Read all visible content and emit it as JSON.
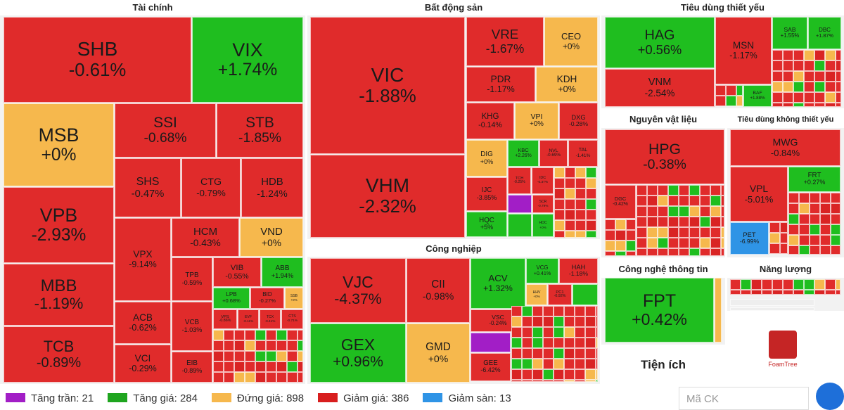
{
  "sectors": [
    {
      "title": "Tài chính",
      "tiles": [
        {
          "ticker": "SHB",
          "change": "-0.61%",
          "color": "#e02b2b"
        },
        {
          "ticker": "VIX",
          "change": "+1.74%",
          "color": "#1fbe1f"
        },
        {
          "ticker": "MSB",
          "change": "+0%",
          "color": "#f6b84d"
        },
        {
          "ticker": "SSI",
          "change": "-0.68%",
          "color": "#e02b2b"
        },
        {
          "ticker": "STB",
          "change": "-1.85%",
          "color": "#e02b2b"
        },
        {
          "ticker": "SHS",
          "change": "-0.47%",
          "color": "#e02b2b"
        },
        {
          "ticker": "CTG",
          "change": "-0.79%",
          "color": "#e02b2b"
        },
        {
          "ticker": "HDB",
          "change": "-1.24%",
          "color": "#e02b2b"
        },
        {
          "ticker": "VPB",
          "change": "-2.93%",
          "color": "#e02b2b"
        },
        {
          "ticker": "VPX",
          "change": "-9.14%",
          "color": "#e02b2b"
        },
        {
          "ticker": "HCM",
          "change": "-0.43%",
          "color": "#e02b2b"
        },
        {
          "ticker": "VND",
          "change": "+0%",
          "color": "#f6b84d"
        },
        {
          "ticker": "MBB",
          "change": "-1.19%",
          "color": "#e02b2b"
        },
        {
          "ticker": "ACB",
          "change": "-0.62%",
          "color": "#e02b2b"
        },
        {
          "ticker": "TPB",
          "change": "-0.59%",
          "color": "#e02b2b"
        },
        {
          "ticker": "VIB",
          "change": "-0.55%",
          "color": "#e02b2b"
        },
        {
          "ticker": "ABB",
          "change": "+1.94%",
          "color": "#1fbe1f"
        },
        {
          "ticker": "LPB",
          "change": "+0.68%",
          "color": "#1fbe1f"
        },
        {
          "ticker": "BID",
          "change": "-0.27%",
          "color": "#e02b2b"
        },
        {
          "ticker": "SSB",
          "change": "+0%",
          "color": "#f6b84d"
        },
        {
          "ticker": "VCB",
          "change": "-1.03%",
          "color": "#e02b2b"
        },
        {
          "ticker": "VPS",
          "change": "-0.86%",
          "color": "#e02b2b"
        },
        {
          "ticker": "EVF",
          "change": "-0.11%",
          "color": "#e02b2b"
        },
        {
          "ticker": "TCX",
          "change": "-0.41%",
          "color": "#e02b2b"
        },
        {
          "ticker": "CTS",
          "change": "-0.71%",
          "color": "#e02b2b"
        },
        {
          "ticker": "TCB",
          "change": "-0.89%",
          "color": "#e02b2b"
        },
        {
          "ticker": "VCI",
          "change": "-0.29%",
          "color": "#e02b2b"
        },
        {
          "ticker": "EIB",
          "change": "-0.89%",
          "color": "#e02b2b"
        }
      ]
    },
    {
      "title": "Bất động sản",
      "tiles": [
        {
          "ticker": "VIC",
          "change": "-1.88%",
          "color": "#e02b2b"
        },
        {
          "ticker": "VHM",
          "change": "-2.32%",
          "color": "#e02b2b"
        },
        {
          "ticker": "VRE",
          "change": "-1.67%",
          "color": "#e02b2b"
        },
        {
          "ticker": "CEO",
          "change": "+0%",
          "color": "#f6b84d"
        },
        {
          "ticker": "PDR",
          "change": "-1.17%",
          "color": "#e02b2b"
        },
        {
          "ticker": "KDH",
          "change": "+0%",
          "color": "#f6b84d"
        },
        {
          "ticker": "KHG",
          "change": "-0.14%",
          "color": "#e02b2b"
        },
        {
          "ticker": "VPI",
          "change": "+0%",
          "color": "#f6b84d"
        },
        {
          "ticker": "DXG",
          "change": "-0.28%",
          "color": "#e02b2b"
        },
        {
          "ticker": "DIG",
          "change": "+0%",
          "color": "#f6b84d"
        },
        {
          "ticker": "KBC",
          "change": "+2.26%",
          "color": "#1fbe1f"
        },
        {
          "ticker": "NVL",
          "change": "-0.69%",
          "color": "#e02b2b"
        },
        {
          "ticker": "TAL",
          "change": "-1.41%",
          "color": "#e02b2b"
        },
        {
          "ticker": "TCH",
          "change": "-0.25%",
          "color": "#e02b2b"
        },
        {
          "ticker": "IDC",
          "change": "-0.37%",
          "color": "#e02b2b"
        },
        {
          "ticker": "IJC",
          "change": "-3.85%",
          "color": "#e02b2b"
        },
        {
          "ticker": "SCR",
          "change": "-0.79%",
          "color": "#e02b2b"
        },
        {
          "ticker": "HQC",
          "change": "+5%",
          "color": "#1fbe1f"
        },
        {
          "ticker": "HDC",
          "change": "+0%",
          "color": "#1fbe1f"
        }
      ]
    },
    {
      "title": "Công nghiệp",
      "tiles": [
        {
          "ticker": "VJC",
          "change": "-4.37%",
          "color": "#e02b2b"
        },
        {
          "ticker": "CII",
          "change": "-0.98%",
          "color": "#e02b2b"
        },
        {
          "ticker": "ACV",
          "change": "+1.32%",
          "color": "#1fbe1f"
        },
        {
          "ticker": "VCG",
          "change": "+0.41%",
          "color": "#1fbe1f"
        },
        {
          "ticker": "HAH",
          "change": "-1.18%",
          "color": "#e02b2b"
        },
        {
          "ticker": "HHV",
          "change": "+0%",
          "color": "#f6b84d"
        },
        {
          "ticker": "PC1",
          "change": "-0.92%",
          "color": "#e02b2b"
        },
        {
          "ticker": "VSC",
          "change": "-0.24%",
          "color": "#e02b2b"
        },
        {
          "ticker": "GEX",
          "change": "+0.96%",
          "color": "#1fbe1f"
        },
        {
          "ticker": "GMD",
          "change": "+0%",
          "color": "#f6b84d"
        },
        {
          "ticker": "GEE",
          "change": "-6.42%",
          "color": "#e02b2b"
        }
      ]
    },
    {
      "title": "Tiêu dùng thiết yếu",
      "tiles": [
        {
          "ticker": "HAG",
          "change": "+0.56%",
          "color": "#1fbe1f"
        },
        {
          "ticker": "VNM",
          "change": "-2.54%",
          "color": "#e02b2b"
        },
        {
          "ticker": "MSN",
          "change": "-1.17%",
          "color": "#e02b2b"
        },
        {
          "ticker": "BAF",
          "change": "+1.88%",
          "color": "#1fbe1f"
        },
        {
          "ticker": "SAB",
          "change": "+1.55%",
          "color": "#1fbe1f"
        },
        {
          "ticker": "DBC",
          "change": "+1.87%",
          "color": "#1fbe1f"
        }
      ]
    },
    {
      "title": "Nguyên vật liệu",
      "tiles": [
        {
          "ticker": "HPG",
          "change": "-0.38%",
          "color": "#e02b2b"
        },
        {
          "ticker": "DGC",
          "change": "-0.42%",
          "color": "#e02b2b"
        }
      ]
    },
    {
      "title": "Tiêu dùng không thiết yếu",
      "tiles": [
        {
          "ticker": "MWG",
          "change": "-0.84%",
          "color": "#e02b2b"
        },
        {
          "ticker": "VPL",
          "change": "-5.01%",
          "color": "#e02b2b"
        },
        {
          "ticker": "FRT",
          "change": "+0.27%",
          "color": "#1fbe1f"
        },
        {
          "ticker": "PET",
          "change": "-6.99%",
          "color": "#2f94e6"
        }
      ]
    },
    {
      "title": "Công nghệ thông tin",
      "tiles": [
        {
          "ticker": "FPT",
          "change": "+0.42%",
          "color": "#1fbe1f"
        }
      ]
    },
    {
      "title": "Năng lượng",
      "tiles": []
    },
    {
      "title": "Tiện ích",
      "tiles": []
    }
  ],
  "brand": "FoamTree",
  "legend": [
    {
      "label": "Tăng trần: 21",
      "color": "#a21ec6"
    },
    {
      "label": "Tăng giá: 284",
      "color": "#1fa51f"
    },
    {
      "label": "Đứng giá: 898",
      "color": "#f6b84d"
    },
    {
      "label": "Giảm giá: 386",
      "color": "#d81e1e"
    },
    {
      "label": "Giảm sàn: 13",
      "color": "#2f94e6"
    }
  ],
  "search_placeholder": "Mã CK"
}
